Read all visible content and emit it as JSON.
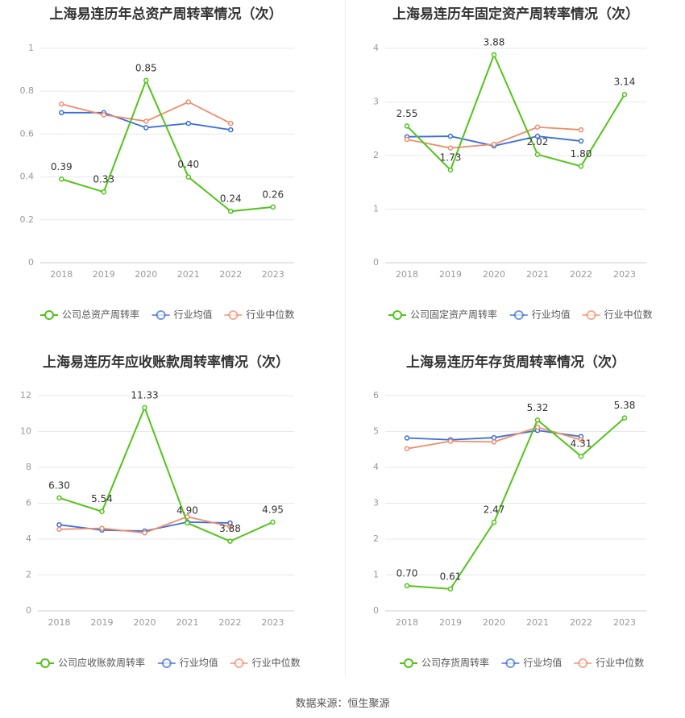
{
  "colors": {
    "company": "#52c41a",
    "industry_avg": "#3a6fdb",
    "industry_median": "#f08c6b",
    "grid": "#e8e8e8",
    "axis_text": "#999999",
    "title_text": "#333333"
  },
  "source": "数据来源：恒生聚源",
  "chart_data": [
    {
      "type": "line",
      "title": "上海易连历年总资产周转率情况（次）",
      "categories": [
        "2018",
        "2019",
        "2020",
        "2021",
        "2022",
        "2023"
      ],
      "ylim": [
        0,
        1
      ],
      "yticks": [
        "0",
        "0.2",
        "0.4",
        "0.6",
        "0.8",
        "1"
      ],
      "series": [
        {
          "name": "公司总资产周转率",
          "values": [
            0.39,
            0.33,
            0.85,
            0.4,
            0.24,
            0.26
          ],
          "labels": [
            "0.39",
            "0.33",
            "0.85",
            "0.40",
            "0.24",
            "0.26"
          ]
        },
        {
          "name": "行业均值",
          "values": [
            0.7,
            0.7,
            0.63,
            0.65,
            0.62,
            null
          ]
        },
        {
          "name": "行业中位数",
          "values": [
            0.74,
            0.69,
            0.66,
            0.75,
            0.65,
            null
          ]
        }
      ]
    },
    {
      "type": "line",
      "title": "上海易连历年固定资产周转率情况（次）",
      "categories": [
        "2018",
        "2019",
        "2020",
        "2021",
        "2022",
        "2023"
      ],
      "ylim": [
        0,
        4
      ],
      "yticks": [
        "0",
        "1",
        "2",
        "3",
        "4"
      ],
      "series": [
        {
          "name": "公司固定资产周转率",
          "values": [
            2.55,
            1.73,
            3.88,
            2.02,
            1.8,
            3.14
          ],
          "labels": [
            "2.55",
            "1.73",
            "3.88",
            "2.02",
            "1.80",
            "3.14"
          ]
        },
        {
          "name": "行业均值",
          "values": [
            2.35,
            2.36,
            2.18,
            2.36,
            2.27,
            null
          ]
        },
        {
          "name": "行业中位数",
          "values": [
            2.3,
            2.14,
            2.21,
            2.53,
            2.48,
            null
          ]
        }
      ]
    },
    {
      "type": "line",
      "title": "上海易连历年应收账款周转率情况（次）",
      "categories": [
        "2018",
        "2019",
        "2020",
        "2021",
        "2022",
        "2023"
      ],
      "ylim": [
        0,
        12
      ],
      "yticks": [
        "0",
        "2",
        "4",
        "6",
        "8",
        "10",
        "12"
      ],
      "series": [
        {
          "name": "公司应收账款周转率",
          "values": [
            6.3,
            5.54,
            11.33,
            4.9,
            3.88,
            4.95
          ],
          "labels": [
            "6.30",
            "5.54",
            "11.33",
            "4.90",
            "3.88",
            "4.95"
          ]
        },
        {
          "name": "行业均值",
          "values": [
            4.8,
            4.5,
            4.45,
            4.95,
            4.9,
            null
          ]
        },
        {
          "name": "行业中位数",
          "values": [
            4.55,
            4.6,
            4.35,
            5.25,
            4.7,
            null
          ]
        }
      ]
    },
    {
      "type": "line",
      "title": "上海易连历年存货周转率情况（次）",
      "categories": [
        "2018",
        "2019",
        "2020",
        "2021",
        "2022",
        "2023"
      ],
      "ylim": [
        0,
        6
      ],
      "yticks": [
        "0",
        "1",
        "2",
        "3",
        "4",
        "5",
        "6"
      ],
      "series": [
        {
          "name": "公司存货周转率",
          "values": [
            0.7,
            0.61,
            2.47,
            5.32,
            4.31,
            5.38
          ],
          "labels": [
            "0.70",
            "0.61",
            "2.47",
            "5.32",
            "4.31",
            "5.38"
          ]
        },
        {
          "name": "行业均值",
          "values": [
            4.82,
            4.77,
            4.83,
            5.03,
            4.86,
            null
          ]
        },
        {
          "name": "行业中位数",
          "values": [
            4.52,
            4.73,
            4.71,
            5.12,
            4.77,
            null
          ]
        }
      ]
    }
  ]
}
